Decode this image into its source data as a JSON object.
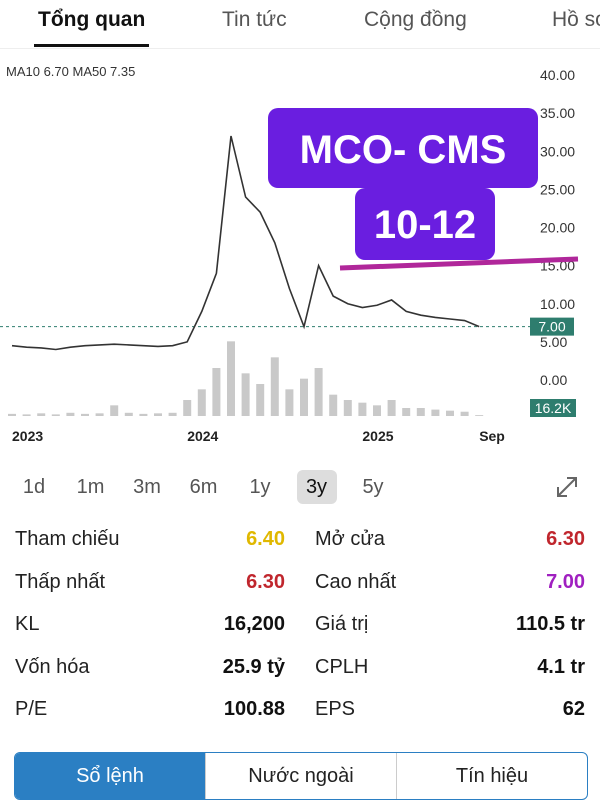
{
  "tabs": [
    "Tổng quan",
    "Tin tức",
    "Cộng đồng",
    "Hồ sơ"
  ],
  "chart_data": {
    "type": "line",
    "legend_text": "MA10 6.70 MA50 7.35",
    "categories": [
      "2023",
      null,
      null,
      null,
      null,
      null,
      null,
      null,
      null,
      null,
      null,
      null,
      "2024",
      null,
      null,
      null,
      null,
      null,
      null,
      null,
      null,
      null,
      null,
      null,
      "2025",
      null,
      null,
      null,
      null,
      null,
      null,
      null,
      "Sep"
    ],
    "values": [
      4.5,
      4.3,
      4.2,
      4.0,
      4.3,
      4.5,
      4.6,
      4.7,
      4.6,
      4.5,
      4.4,
      4.5,
      5.0,
      9.0,
      14,
      32,
      24,
      22,
      18,
      12,
      7,
      15,
      11,
      10,
      9.5,
      9.8,
      10.5,
      9,
      8.5,
      8.2,
      8.0,
      7.8,
      7.0
    ],
    "color": "#333333",
    "volume": [
      40000,
      30000,
      50000,
      30000,
      60000,
      40000,
      50000,
      200000,
      60000,
      40000,
      50000,
      60000,
      300000,
      500000,
      900000,
      1400000,
      800000,
      600000,
      1100000,
      500000,
      700000,
      900000,
      400000,
      300000,
      250000,
      200000,
      300000,
      150000,
      150000,
      120000,
      100000,
      80000,
      16200
    ],
    "volume_color": "#c9c9c9",
    "volume_lim": [
      0,
      1500000
    ],
    "ylim": [
      0,
      40
    ],
    "yticks": [
      {
        "value": 40,
        "label": "40.00"
      },
      {
        "value": 35,
        "label": "35.00"
      },
      {
        "value": 30,
        "label": "30.00"
      },
      {
        "value": 25,
        "label": "25.00"
      },
      {
        "value": 20,
        "label": "20.00"
      },
      {
        "value": 15,
        "label": "15.00"
      },
      {
        "value": 10,
        "label": "10.00"
      },
      {
        "value": 5,
        "label": "5.00"
      },
      {
        "value": 0,
        "label": "0.00"
      }
    ],
    "last_price": {
      "value": 7,
      "label": "7.00"
    },
    "last_volume": {
      "value": 16200,
      "label": "16.2K"
    },
    "annotations": [
      "MCO- CMS",
      "10-12"
    ]
  },
  "periods": [
    "1d",
    "1m",
    "3m",
    "6m",
    "1y",
    "3y",
    "5y"
  ],
  "selected_period": "3y",
  "stats": [
    [
      {
        "label": "Tham chiếu",
        "value": "6.40",
        "color": "#e0b800"
      },
      {
        "label": "Mở cửa",
        "value": "6.30",
        "color": "#c0262d"
      }
    ],
    [
      {
        "label": "Thấp nhất",
        "value": "6.30",
        "color": "#c0262d"
      },
      {
        "label": "Cao nhất",
        "value": "7.00",
        "color": "#a020c0"
      }
    ],
    [
      {
        "label": "KL",
        "value": "16,200",
        "color": "#111111"
      },
      {
        "label": "Giá trị",
        "value": "110.5 tr",
        "color": "#111111"
      }
    ],
    [
      {
        "label": "Vốn hóa",
        "value": "25.9 tỷ",
        "color": "#111111"
      },
      {
        "label": "CPLH",
        "value": "4.1 tr",
        "color": "#111111"
      }
    ],
    [
      {
        "label": "P/E",
        "value": "100.88",
        "color": "#111111"
      },
      {
        "label": "EPS",
        "value": "62",
        "color": "#111111"
      }
    ]
  ],
  "bottom_tabs": [
    "Sổ lệnh",
    "Nước ngoài",
    "Tín hiệu"
  ]
}
